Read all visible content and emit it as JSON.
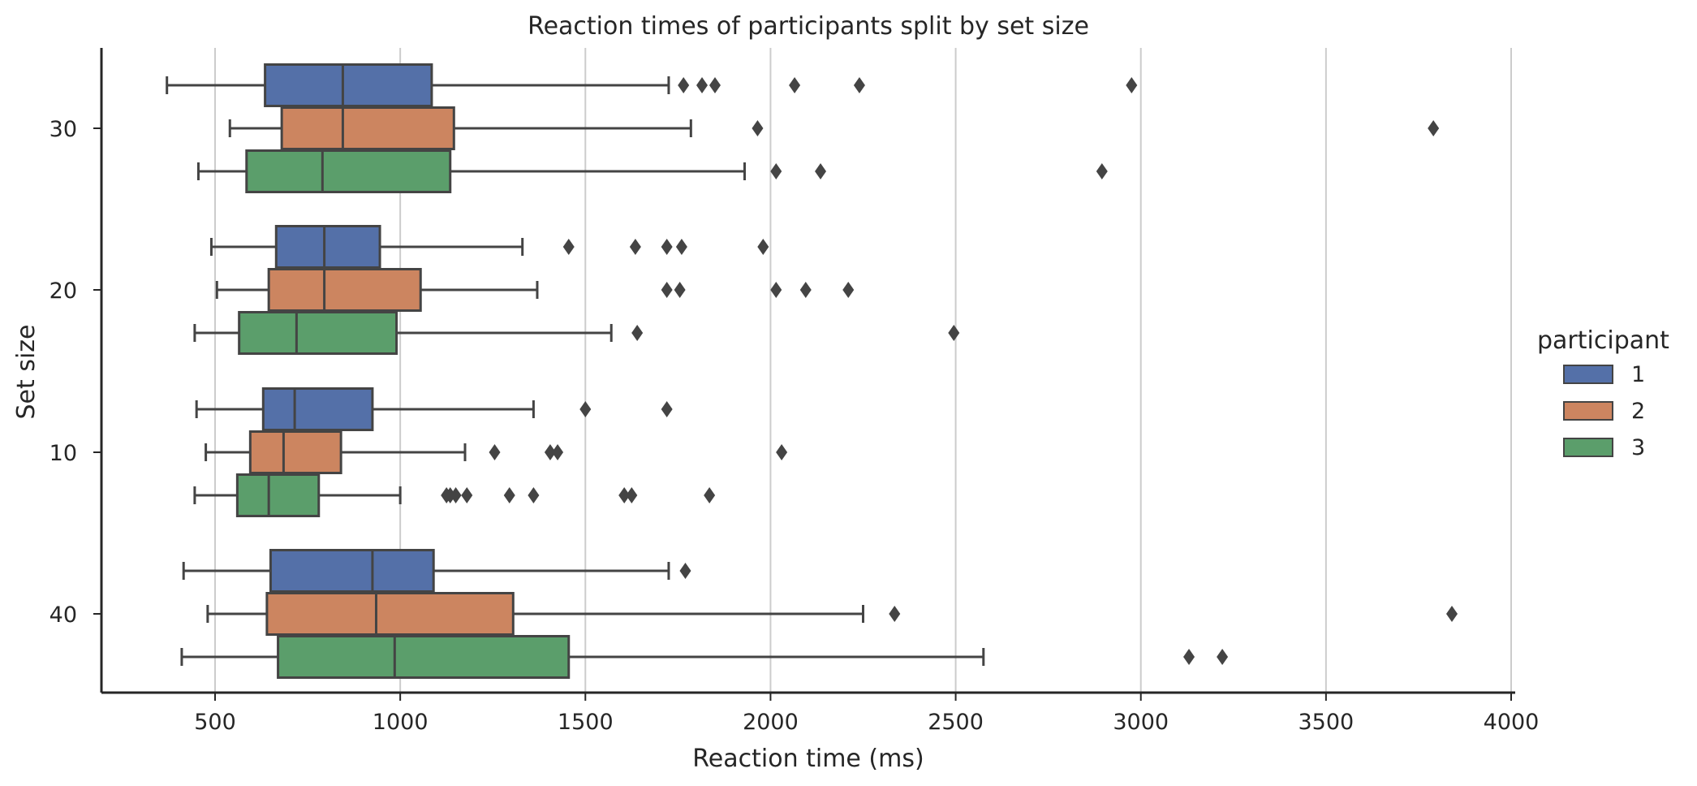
{
  "chart_data": {
    "type": "boxplot",
    "orientation": "horizontal",
    "title": "Reaction times of participants split by set size",
    "xlabel": "Reaction time (ms)",
    "ylabel": "Set size",
    "xlim": [
      195,
      4015
    ],
    "xticks": [
      500,
      1000,
      1500,
      2000,
      2500,
      3000,
      3500,
      4000
    ],
    "grid": "x",
    "categories": [
      "30",
      "20",
      "10",
      "40"
    ],
    "legend": {
      "title": "participant",
      "placement": "right",
      "entries": [
        {
          "label": "1",
          "color": "#5470a8"
        },
        {
          "label": "2",
          "color": "#cc8560"
        },
        {
          "label": "3",
          "color": "#5b9e6b"
        }
      ]
    },
    "series": [
      {
        "name": "1",
        "color": "#5470a8",
        "boxes": [
          {
            "category": "30",
            "whislo": 370,
            "q1": 635,
            "med": 845,
            "q3": 1085,
            "whishi": 1725,
            "fliers": [
              1765,
              1815,
              1850,
              2065,
              2240,
              2975
            ]
          },
          {
            "category": "20",
            "whislo": 490,
            "q1": 665,
            "med": 795,
            "q3": 945,
            "whishi": 1330,
            "fliers": [
              1455,
              1635,
              1720,
              1760,
              1980
            ]
          },
          {
            "category": "10",
            "whislo": 450,
            "q1": 630,
            "med": 715,
            "q3": 925,
            "whishi": 1360,
            "fliers": [
              1500,
              1720
            ]
          },
          {
            "category": "40",
            "whislo": 415,
            "q1": 650,
            "med": 925,
            "q3": 1090,
            "whishi": 1725,
            "fliers": [
              1770
            ]
          }
        ]
      },
      {
        "name": "2",
        "color": "#cc8560",
        "boxes": [
          {
            "category": "30",
            "whislo": 540,
            "q1": 680,
            "med": 845,
            "q3": 1145,
            "whishi": 1785,
            "fliers": [
              1965,
              3790
            ]
          },
          {
            "category": "20",
            "whislo": 505,
            "q1": 645,
            "med": 795,
            "q3": 1055,
            "whishi": 1370,
            "fliers": [
              1720,
              1755,
              2015,
              2095,
              2210
            ]
          },
          {
            "category": "10",
            "whislo": 475,
            "q1": 595,
            "med": 685,
            "q3": 840,
            "whishi": 1175,
            "fliers": [
              1255,
              1405,
              1425,
              2030
            ]
          },
          {
            "category": "40",
            "whislo": 480,
            "q1": 640,
            "med": 935,
            "q3": 1305,
            "whishi": 2250,
            "fliers": [
              2335,
              3840
            ]
          }
        ]
      },
      {
        "name": "3",
        "color": "#5b9e6b",
        "boxes": [
          {
            "category": "30",
            "whislo": 455,
            "q1": 585,
            "med": 790,
            "q3": 1135,
            "whishi": 1930,
            "fliers": [
              2015,
              2135,
              2895
            ]
          },
          {
            "category": "20",
            "whislo": 445,
            "q1": 565,
            "med": 720,
            "q3": 990,
            "whishi": 1570,
            "fliers": [
              1640,
              2495
            ]
          },
          {
            "category": "10",
            "whislo": 445,
            "q1": 560,
            "med": 645,
            "q3": 780,
            "whishi": 1000,
            "fliers": [
              1125,
              1135,
              1150,
              1180,
              1295,
              1360,
              1605,
              1625,
              1835
            ]
          },
          {
            "category": "40",
            "whislo": 410,
            "q1": 670,
            "med": 985,
            "q3": 1455,
            "whishi": 2575,
            "fliers": [
              3130,
              3220
            ]
          }
        ]
      }
    ]
  }
}
